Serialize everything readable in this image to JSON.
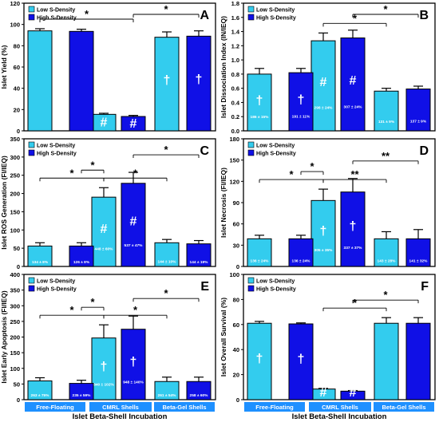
{
  "figure": {
    "xlabel": "Islet Beta-Shell Incubation"
  },
  "colors": {
    "low": "#33ccee",
    "high": "#1010e6",
    "band": "#1e90ff",
    "band_text": "#ffffff",
    "axis": "#000000"
  },
  "chart_data": [
    {
      "panel": "A",
      "type": "bar",
      "ylabel": "Islet Yield (%)",
      "ylim": [
        0,
        120
      ],
      "yticks": [
        0,
        20,
        40,
        60,
        80,
        100,
        120
      ],
      "groups": [
        "Free-Floating",
        "CMRL Shells",
        "Beta-Gel Shells"
      ],
      "series": [
        {
          "name": "Low S-Density",
          "values": [
            94,
            15.5,
            88
          ],
          "errors": [
            2,
            1,
            5
          ],
          "marks": [
            "",
            "#",
            "†"
          ],
          "labels": [
            "",
            "",
            ""
          ]
        },
        {
          "name": "High S-Density",
          "values": [
            93.5,
            13.5,
            89
          ],
          "errors": [
            2,
            1,
            5
          ],
          "marks": [
            "",
            "#",
            "†"
          ],
          "labels": [
            "",
            "",
            ""
          ]
        }
      ],
      "significance": [
        {
          "from": [
            0,
            0
          ],
          "to": [
            1,
            1
          ],
          "label": "*"
        },
        {
          "from": [
            1,
            1
          ],
          "to": [
            2,
            1
          ],
          "label": "*"
        }
      ]
    },
    {
      "panel": "B",
      "type": "bar",
      "ylabel": "Islet Dissociation Index (IN/IEQ)",
      "ylim": [
        0,
        1.8
      ],
      "yticks": [
        0,
        0.2,
        0.4,
        0.6,
        0.8,
        1.0,
        1.2,
        1.4,
        1.6,
        1.8
      ],
      "groups": [
        "Free-Floating",
        "CMRL Shells",
        "Beta-Gel Shells"
      ],
      "series": [
        {
          "name": "Low S-Density",
          "values": [
            0.8,
            1.27,
            0.56
          ],
          "errors": [
            0.08,
            0.11,
            0.04
          ],
          "marks": [
            "†",
            "#",
            ""
          ],
          "labels": [
            "186 ± 15%",
            "298 ± 24%",
            "131 ± 9%"
          ]
        },
        {
          "name": "High S-Density",
          "values": [
            0.82,
            1.31,
            0.59
          ],
          "errors": [
            0.06,
            0.11,
            0.04
          ],
          "marks": [
            "†",
            "#",
            ""
          ],
          "labels": [
            "191 ± 11%",
            "307 ± 24%",
            "137 ± 9%"
          ]
        }
      ],
      "significance": [
        {
          "from": [
            1,
            0
          ],
          "to": [
            2,
            0
          ],
          "label": "*"
        },
        {
          "from": [
            1,
            1
          ],
          "to": [
            2,
            1
          ],
          "label": "*"
        }
      ]
    },
    {
      "panel": "C",
      "type": "bar",
      "ylabel": "Islet ROS Generation (FI/IEQ)",
      "ylim": [
        0,
        350
      ],
      "yticks": [
        0,
        50,
        100,
        150,
        200,
        250,
        300,
        350
      ],
      "groups": [
        "Free-Floating",
        "CMRL Shells",
        "Beta-Gel Shells"
      ],
      "series": [
        {
          "name": "Low S-Density",
          "values": [
            56,
            190,
            65
          ],
          "errors": [
            9,
            26,
            9
          ],
          "marks": [
            "",
            "#",
            ""
          ],
          "labels": [
            "134 ± 8%",
            "448 ± 60%",
            "144 ± 10%"
          ]
        },
        {
          "name": "High S-Density",
          "values": [
            56,
            228,
            62
          ],
          "errors": [
            9,
            30,
            9
          ],
          "marks": [
            "",
            "#",
            ""
          ],
          "labels": [
            "126 ± 8%",
            "537 ± 47%",
            "144 ± 19%"
          ]
        }
      ],
      "significance": [
        {
          "from": [
            0,
            0
          ],
          "to": [
            1,
            0
          ],
          "label": "*"
        },
        {
          "from": [
            0,
            1
          ],
          "to": [
            1,
            0
          ],
          "label": "*"
        },
        {
          "from": [
            1,
            0
          ],
          "to": [
            2,
            0
          ],
          "label": "*"
        },
        {
          "from": [
            1,
            1
          ],
          "to": [
            2,
            1
          ],
          "label": "*"
        }
      ]
    },
    {
      "panel": "D",
      "type": "bar",
      "ylabel": "Islet Necrosis (FI/IEQ)",
      "ylim": [
        0,
        180
      ],
      "yticks": [
        0,
        30,
        60,
        90,
        120,
        150,
        180
      ],
      "groups": [
        "Free-Floating",
        "CMRL Shells",
        "Beta-Gel Shells"
      ],
      "series": [
        {
          "name": "Low S-Density",
          "values": [
            39,
            93,
            39
          ],
          "errors": [
            5,
            16,
            10
          ],
          "marks": [
            "",
            "†",
            ""
          ],
          "labels": [
            "136 ± 24%",
            "305 ± 35%",
            "143 ± 28%"
          ]
        },
        {
          "name": "High S-Density",
          "values": [
            39,
            105,
            39
          ],
          "errors": [
            5,
            19,
            13
          ],
          "marks": [
            "",
            "†",
            ""
          ],
          "labels": [
            "136 ± 24%",
            "337 ± 37%",
            "141 ± 32%"
          ]
        }
      ],
      "significance": [
        {
          "from": [
            0,
            0
          ],
          "to": [
            1,
            0
          ],
          "label": "*"
        },
        {
          "from": [
            0,
            1
          ],
          "to": [
            1,
            0
          ],
          "label": "*"
        },
        {
          "from": [
            1,
            0
          ],
          "to": [
            2,
            0
          ],
          "label": "**"
        },
        {
          "from": [
            1,
            1
          ],
          "to": [
            2,
            1
          ],
          "label": "**"
        }
      ]
    },
    {
      "panel": "E",
      "type": "bar",
      "ylabel": "Islet Early Apoptosis (FI/IEQ)",
      "ylim": [
        0,
        400
      ],
      "yticks": [
        0,
        50,
        100,
        150,
        200,
        250,
        300,
        350,
        400
      ],
      "groups": [
        "Free-Floating",
        "CMRL Shells",
        "Beta-Gel Shells"
      ],
      "series": [
        {
          "name": "Low S-Density",
          "values": [
            60,
            197,
            58
          ],
          "errors": [
            10,
            42,
            14
          ],
          "marks": [
            "",
            "†",
            ""
          ],
          "labels": [
            "263 ± 75%",
            "840 ± 102%",
            "261 ± 54%"
          ]
        },
        {
          "name": "High S-Density",
          "values": [
            52,
            225,
            58
          ],
          "errors": [
            10,
            42,
            14
          ],
          "marks": [
            "",
            "†",
            ""
          ],
          "labels": [
            "235 ± 59%",
            "948 ± 140%",
            "258 ± 60%"
          ]
        }
      ],
      "significance": [
        {
          "from": [
            0,
            0
          ],
          "to": [
            1,
            0
          ],
          "label": "*"
        },
        {
          "from": [
            0,
            1
          ],
          "to": [
            1,
            0
          ],
          "label": "*"
        },
        {
          "from": [
            1,
            0
          ],
          "to": [
            2,
            0
          ],
          "label": "*"
        },
        {
          "from": [
            1,
            1
          ],
          "to": [
            2,
            1
          ],
          "label": "*"
        }
      ]
    },
    {
      "panel": "F",
      "type": "bar",
      "ylabel": "Islet Overall Survival (%)",
      "ylim": [
        0,
        100
      ],
      "yticks": [
        0,
        20,
        40,
        60,
        80,
        100
      ],
      "groups": [
        "Free-Floating",
        "CMRL Shells",
        "Beta-Gel Shells"
      ],
      "series": [
        {
          "name": "Low S-Density",
          "values": [
            61,
            8.5,
            61
          ],
          "errors": [
            1.5,
            0.5,
            4.5
          ],
          "marks": [
            "†",
            "#",
            ""
          ],
          "labels": [
            "",
            "",
            ""
          ]
        },
        {
          "name": "High S-Density",
          "values": [
            60.5,
            6.8,
            61
          ],
          "errors": [
            0.8,
            0.5,
            4.5
          ],
          "marks": [
            "†",
            "#",
            ""
          ],
          "labels": [
            "",
            "",
            ""
          ]
        }
      ],
      "significance": [
        {
          "from": [
            1,
            0
          ],
          "to": [
            2,
            0
          ],
          "label": "*"
        },
        {
          "from": [
            1,
            1
          ],
          "to": [
            2,
            1
          ],
          "label": "*"
        }
      ]
    }
  ]
}
